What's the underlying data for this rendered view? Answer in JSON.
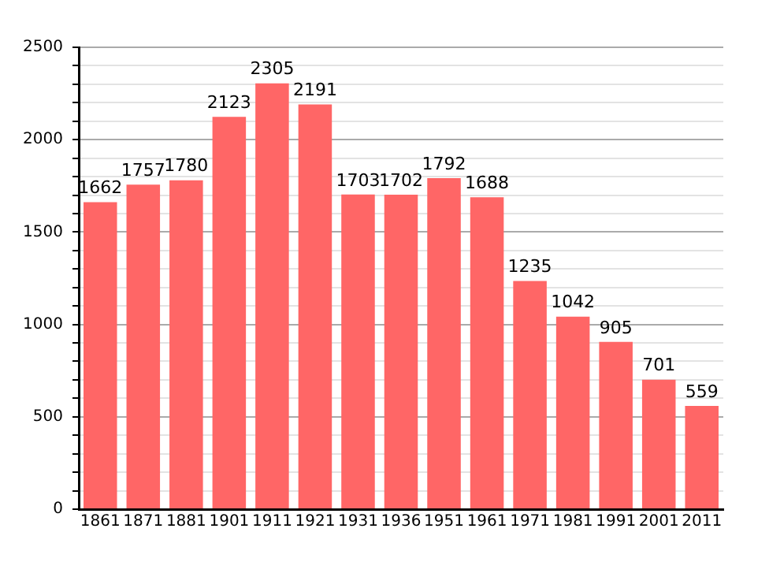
{
  "chart_data": {
    "type": "bar",
    "categories": [
      "1861",
      "1871",
      "1881",
      "1901",
      "1911",
      "1921",
      "1931",
      "1936",
      "1951",
      "1961",
      "1971",
      "1981",
      "1991",
      "2001",
      "2011"
    ],
    "values": [
      1662,
      1757,
      1780,
      2123,
      2305,
      2191,
      1703,
      1702,
      1792,
      1688,
      1235,
      1042,
      905,
      701,
      559
    ],
    "color": "#ff6666",
    "ylim": [
      0,
      2500
    ],
    "yticks": [
      0,
      {
        "value": 100,
        "label": null
      },
      {
        "value": 200,
        "label": null
      },
      {
        "value": 300,
        "label": null
      },
      {
        "value": 400,
        "label": null
      },
      500,
      {
        "value": 600,
        "label": null
      },
      {
        "value": 700,
        "label": null
      },
      {
        "value": 800,
        "label": null
      },
      {
        "value": 900,
        "label": null
      },
      1000,
      {
        "value": 1100,
        "label": null
      },
      {
        "value": 1200,
        "label": null
      },
      {
        "value": 1300,
        "label": null
      },
      {
        "value": 1400,
        "label": null
      },
      1500,
      {
        "value": 1600,
        "label": null
      },
      {
        "value": 1700,
        "label": null
      },
      {
        "value": 1800,
        "label": null
      },
      {
        "value": 1900,
        "label": null
      },
      2000,
      {
        "value": 2100,
        "label": null
      },
      {
        "value": 2200,
        "label": null
      },
      {
        "value": 2300,
        "label": null
      },
      {
        "value": 2400,
        "label": null
      },
      2500
    ],
    "grid": "y",
    "data_labels": true
  }
}
